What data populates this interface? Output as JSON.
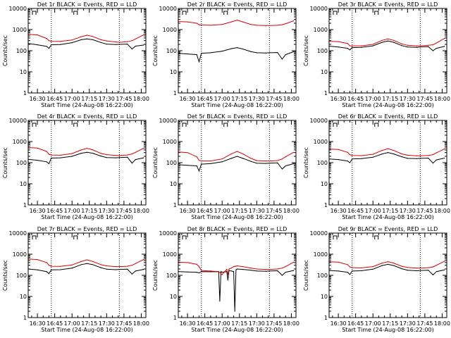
{
  "page": {
    "background": "#ffffff"
  },
  "style": {
    "events_color": "#000000",
    "lld_color": "#e00000",
    "axis_color": "#000000"
  },
  "chart_data": [
    {
      "type": "line",
      "title": "Det 1r BLACK = Events, RED = LLD",
      "xlabel": "Start Time (24-Aug-08 16:22:00)",
      "ylabel": "Counts/sec",
      "y_scale": "log",
      "ylim": [
        1,
        10000
      ],
      "y_ticks": [
        1,
        10,
        100,
        1000,
        10000
      ],
      "y_tick_labels": [
        "1",
        "10",
        "100",
        "1000",
        "10000"
      ],
      "xlim": [
        "16:22",
        "18:04"
      ],
      "x_ticks": [
        "16:30",
        "16:45",
        "17:00",
        "17:15",
        "17:30",
        "17:45",
        "18:00"
      ],
      "vlines": [
        "16:42",
        "17:41"
      ],
      "x": [
        "16:22",
        "16:30",
        "16:38",
        "16:40",
        "16:42",
        "16:50",
        "17:00",
        "17:08",
        "17:13",
        "17:18",
        "17:25",
        "17:30",
        "17:38",
        "17:41",
        "17:48",
        "17:52",
        "17:55",
        "18:02"
      ],
      "series": [
        {
          "role": "events",
          "values": [
            220,
            190,
            160,
            130,
            190,
            195,
            240,
            330,
            360,
            330,
            245,
            205,
            195,
            200,
            205,
            120,
            165,
            185
          ]
        },
        {
          "role": "lld",
          "values": [
            600,
            560,
            380,
            300,
            280,
            275,
            320,
            460,
            540,
            470,
            330,
            290,
            260,
            250,
            265,
            300,
            360,
            560
          ]
        }
      ]
    },
    {
      "type": "line",
      "title": "Det 2r BLACK = Events, RED = LLD",
      "xlabel": "Start Time (24-Aug-08 16:22:00)",
      "ylabel": "Counts/sec",
      "y_scale": "log",
      "ylim": [
        1,
        10000
      ],
      "y_ticks": [
        1,
        10,
        100,
        1000,
        10000
      ],
      "y_tick_labels": [
        "1",
        "10",
        "100",
        "1000",
        "10000"
      ],
      "xlim": [
        "16:22",
        "18:04"
      ],
      "x_ticks": [
        "16:30",
        "16:45",
        "17:00",
        "17:15",
        "17:30",
        "17:45",
        "18:00"
      ],
      "vlines": [
        "16:42",
        "17:41"
      ],
      "x": [
        "16:22",
        "16:30",
        "16:38",
        "16:40",
        "16:42",
        "16:50",
        "17:00",
        "17:08",
        "17:13",
        "17:18",
        "17:25",
        "17:30",
        "17:38",
        "17:41",
        "17:48",
        "17:52",
        "17:55",
        "18:02"
      ],
      "series": [
        {
          "role": "events",
          "values": [
            75,
            70,
            65,
            30,
            75,
            80,
            95,
            125,
            140,
            120,
            90,
            80,
            78,
            80,
            82,
            40,
            65,
            90
          ]
        },
        {
          "role": "lld",
          "values": [
            2400,
            2300,
            2000,
            1700,
            1650,
            1600,
            1750,
            2300,
            2800,
            2300,
            1750,
            1600,
            1550,
            1550,
            1600,
            1700,
            1900,
            2600
          ]
        }
      ]
    },
    {
      "type": "line",
      "title": "Det 3r BLACK = Events, RED = LLD",
      "xlabel": "Start Time (24-Aug-08 16:22:00)",
      "ylabel": "Counts/sec",
      "y_scale": "log",
      "ylim": [
        1,
        10000
      ],
      "y_ticks": [
        1,
        10,
        100,
        1000,
        10000
      ],
      "y_tick_labels": [
        "1",
        "10",
        "100",
        "1000",
        "10000"
      ],
      "xlim": [
        "16:22",
        "18:04"
      ],
      "x_ticks": [
        "16:30",
        "16:45",
        "17:00",
        "17:15",
        "17:30",
        "17:45",
        "18:00"
      ],
      "vlines": [
        "16:42",
        "17:41"
      ],
      "x": [
        "16:22",
        "16:30",
        "16:38",
        "16:40",
        "16:42",
        "16:50",
        "17:00",
        "17:08",
        "17:13",
        "17:18",
        "17:25",
        "17:30",
        "17:38",
        "17:41",
        "17:48",
        "17:52",
        "17:55",
        "18:02"
      ],
      "series": [
        {
          "role": "events",
          "values": [
            165,
            150,
            130,
            110,
            140,
            145,
            170,
            250,
            290,
            250,
            175,
            150,
            145,
            150,
            155,
            100,
            130,
            160
          ]
        },
        {
          "role": "lld",
          "values": [
            280,
            270,
            220,
            170,
            170,
            170,
            200,
            310,
            360,
            310,
            210,
            180,
            170,
            170,
            180,
            190,
            230,
            380
          ]
        }
      ]
    },
    {
      "type": "line",
      "title": "Det 4r BLACK = Events, RED = LLD",
      "xlabel": "Start Time (24-Aug-08 16:22:00)",
      "ylabel": "Counts/sec",
      "y_scale": "log",
      "ylim": [
        1,
        10000
      ],
      "y_ticks": [
        1,
        10,
        100,
        1000,
        10000
      ],
      "y_tick_labels": [
        "1",
        "10",
        "100",
        "1000",
        "10000"
      ],
      "xlim": [
        "16:22",
        "18:04"
      ],
      "x_ticks": [
        "16:30",
        "16:45",
        "17:00",
        "17:15",
        "17:30",
        "17:45",
        "18:00"
      ],
      "vlines": [
        "16:42",
        "17:41"
      ],
      "x": [
        "16:22",
        "16:30",
        "16:38",
        "16:40",
        "16:42",
        "16:50",
        "17:00",
        "17:08",
        "17:13",
        "17:18",
        "17:25",
        "17:30",
        "17:38",
        "17:41",
        "17:48",
        "17:52",
        "17:55",
        "18:02"
      ],
      "series": [
        {
          "role": "events",
          "values": [
            145,
            130,
            110,
            90,
            165,
            170,
            200,
            280,
            310,
            280,
            205,
            175,
            170,
            175,
            180,
            95,
            140,
            170
          ]
        },
        {
          "role": "lld",
          "values": [
            520,
            490,
            340,
            250,
            230,
            225,
            270,
            400,
            480,
            400,
            275,
            240,
            220,
            220,
            230,
            260,
            310,
            480
          ]
        }
      ]
    },
    {
      "type": "line",
      "title": "Det 5r BLACK = Events, RED = LLD",
      "xlabel": "Start Time (24-Aug-08 16:22:00)",
      "ylabel": "Counts/sec",
      "y_scale": "log",
      "ylim": [
        1,
        10000
      ],
      "y_ticks": [
        1,
        10,
        100,
        1000,
        10000
      ],
      "y_tick_labels": [
        "1",
        "10",
        "100",
        "1000",
        "10000"
      ],
      "xlim": [
        "16:22",
        "18:04"
      ],
      "x_ticks": [
        "16:30",
        "16:45",
        "17:00",
        "17:15",
        "17:30",
        "17:45",
        "18:00"
      ],
      "vlines": [
        "16:42",
        "17:41"
      ],
      "x": [
        "16:22",
        "16:30",
        "16:38",
        "16:40",
        "16:42",
        "16:50",
        "17:00",
        "17:08",
        "17:13",
        "17:18",
        "17:25",
        "17:30",
        "17:38",
        "17:41",
        "17:48",
        "17:52",
        "17:55",
        "18:02"
      ],
      "series": [
        {
          "role": "events",
          "values": [
            80,
            75,
            70,
            40,
            85,
            90,
            110,
            160,
            200,
            160,
            115,
            95,
            92,
            95,
            98,
            50,
            70,
            90
          ]
        },
        {
          "role": "lld",
          "values": [
            320,
            300,
            190,
            130,
            120,
            120,
            150,
            260,
            340,
            260,
            160,
            125,
            120,
            120,
            125,
            150,
            190,
            310
          ]
        }
      ]
    },
    {
      "type": "line",
      "title": "Det 6r BLACK = Events, RED = LLD",
      "xlabel": "Start Time (24-Aug-08 16:22:00)",
      "ylabel": "Counts/sec",
      "y_scale": "log",
      "ylim": [
        1,
        10000
      ],
      "y_ticks": [
        1,
        10,
        100,
        1000,
        10000
      ],
      "y_tick_labels": [
        "1",
        "10",
        "100",
        "1000",
        "10000"
      ],
      "xlim": [
        "16:22",
        "18:04"
      ],
      "x_ticks": [
        "16:30",
        "16:45",
        "17:00",
        "17:15",
        "17:30",
        "17:45",
        "18:00"
      ],
      "vlines": [
        "16:42",
        "17:41"
      ],
      "x": [
        "16:22",
        "16:30",
        "16:38",
        "16:40",
        "16:42",
        "16:50",
        "17:00",
        "17:08",
        "17:13",
        "17:18",
        "17:25",
        "17:30",
        "17:38",
        "17:41",
        "17:48",
        "17:52",
        "17:55",
        "18:02"
      ],
      "series": [
        {
          "role": "events",
          "values": [
            150,
            140,
            120,
            100,
            150,
            155,
            180,
            260,
            300,
            260,
            190,
            160,
            155,
            160,
            165,
            95,
            135,
            165
          ]
        },
        {
          "role": "lld",
          "values": [
            440,
            420,
            310,
            240,
            220,
            215,
            250,
            380,
            460,
            380,
            260,
            225,
            210,
            210,
            220,
            240,
            290,
            450
          ]
        }
      ]
    },
    {
      "type": "line",
      "title": "Det 7r BLACK = Events, RED = LLD",
      "xlabel": "Start Time (24-Aug-08 16:22:00)",
      "ylabel": "Counts/sec",
      "y_scale": "log",
      "ylim": [
        1,
        10000
      ],
      "y_ticks": [
        1,
        10,
        100,
        1000,
        10000
      ],
      "y_tick_labels": [
        "1",
        "10",
        "100",
        "1000",
        "10000"
      ],
      "xlim": [
        "16:22",
        "18:04"
      ],
      "x_ticks": [
        "16:30",
        "16:45",
        "17:00",
        "17:15",
        "17:30",
        "17:45",
        "18:00"
      ],
      "vlines": [
        "16:42",
        "17:41"
      ],
      "x": [
        "16:22",
        "16:30",
        "16:38",
        "16:40",
        "16:42",
        "16:50",
        "17:00",
        "17:08",
        "17:13",
        "17:18",
        "17:25",
        "17:30",
        "17:38",
        "17:41",
        "17:48",
        "17:52",
        "17:55",
        "18:02"
      ],
      "series": [
        {
          "role": "events",
          "values": [
            200,
            180,
            150,
            120,
            180,
            185,
            220,
            320,
            360,
            320,
            230,
            195,
            185,
            190,
            195,
            115,
            160,
            190
          ]
        },
        {
          "role": "lld",
          "values": [
            600,
            560,
            400,
            300,
            270,
            265,
            310,
            450,
            540,
            450,
            320,
            280,
            260,
            260,
            270,
            300,
            360,
            560
          ]
        }
      ]
    },
    {
      "type": "line",
      "title": "Det 8r BLACK = Events, RED = LLD",
      "xlabel": "Start Time (24-Aug-08 16:22:00)",
      "ylabel": "Counts/sec",
      "y_scale": "log",
      "ylim": [
        1,
        10000
      ],
      "y_ticks": [
        1,
        10,
        100,
        1000,
        10000
      ],
      "y_tick_labels": [
        "1",
        "10",
        "100",
        "1000",
        "10000"
      ],
      "xlim": [
        "16:22",
        "18:04"
      ],
      "x_ticks": [
        "16:30",
        "16:45",
        "17:00",
        "17:15",
        "17:30",
        "17:45",
        "18:00"
      ],
      "vlines": [
        "16:42",
        "17:41"
      ],
      "x": [
        "16:22",
        "16:30",
        "16:38",
        "16:40",
        "16:42",
        "16:50",
        "16:57",
        "16:58",
        "16:59",
        "17:00",
        "17:04",
        "17:05",
        "17:06",
        "17:08",
        "17:10",
        "17:11",
        "17:12",
        "17:13",
        "17:18",
        "17:25",
        "17:30",
        "17:38",
        "17:41",
        "17:48",
        "17:52",
        "17:55",
        "18:02"
      ],
      "series": [
        {
          "role": "events",
          "values": [
            150,
            145,
            140,
            130,
            150,
            148,
            150,
            6,
            150,
            140,
            150,
            60,
            170,
            160,
            150,
            2,
            180,
            200,
            190,
            175,
            160,
            155,
            160,
            165,
            100,
            140,
            170
          ]
        },
        {
          "role": "lld",
          "values": [
            420,
            400,
            330,
            260,
            170,
            160,
            150,
            140,
            120,
            110,
            190,
            110,
            200,
            220,
            260,
            270,
            270,
            280,
            260,
            220,
            200,
            190,
            190,
            200,
            220,
            260,
            420
          ]
        }
      ]
    },
    {
      "type": "line",
      "title": "Det 9r BLACK = Events, RED = LLD",
      "xlabel": "Start Time (24-Aug-08 16:22:00)",
      "ylabel": "Counts/sec",
      "y_scale": "log",
      "ylim": [
        1,
        10000
      ],
      "y_ticks": [
        1,
        10,
        100,
        1000,
        10000
      ],
      "y_tick_labels": [
        "1",
        "10",
        "100",
        "1000",
        "10000"
      ],
      "xlim": [
        "16:22",
        "18:04"
      ],
      "x_ticks": [
        "16:30",
        "16:45",
        "17:00",
        "17:15",
        "17:30",
        "17:45",
        "18:00"
      ],
      "vlines": [
        "16:42",
        "17:41"
      ],
      "x": [
        "16:22",
        "16:30",
        "16:38",
        "16:40",
        "16:42",
        "16:50",
        "17:00",
        "17:08",
        "17:13",
        "17:18",
        "17:25",
        "17:30",
        "17:38",
        "17:41",
        "17:48",
        "17:52",
        "17:55",
        "18:02"
      ],
      "series": [
        {
          "role": "events",
          "values": [
            170,
            160,
            140,
            110,
            160,
            165,
            195,
            290,
            330,
            290,
            205,
            175,
            165,
            170,
            175,
            105,
            150,
            180
          ]
        },
        {
          "role": "lld",
          "values": [
            440,
            420,
            320,
            250,
            230,
            225,
            260,
            380,
            440,
            380,
            270,
            235,
            220,
            220,
            230,
            250,
            300,
            460
          ]
        }
      ]
    }
  ]
}
